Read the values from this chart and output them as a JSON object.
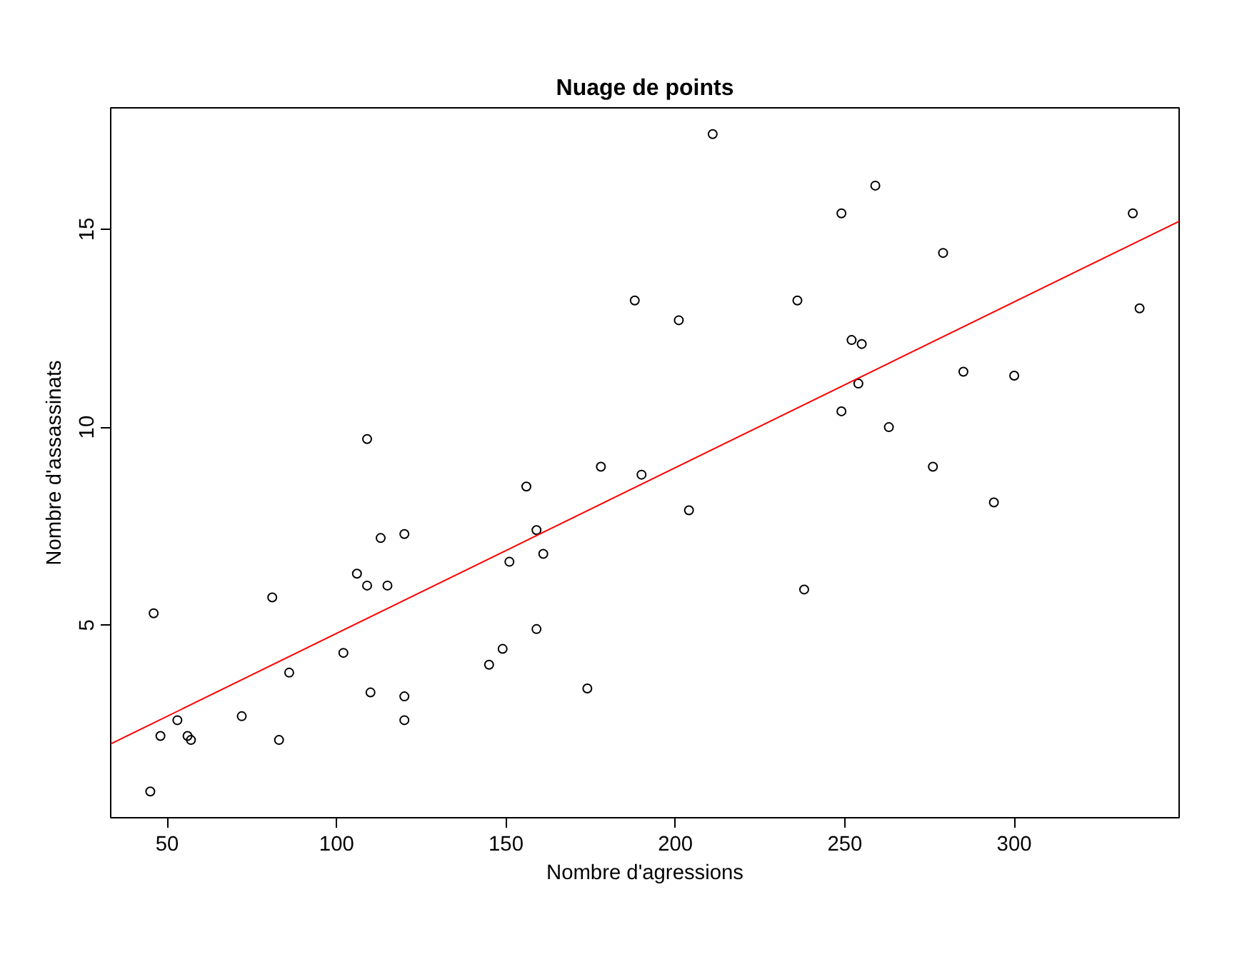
{
  "chart_data": {
    "type": "scatter",
    "title": "Nuage de points",
    "xlabel": "Nombre d'agressions",
    "ylabel": "Nombre d'assassinats",
    "xlim": [
      33.32,
      348.68
    ],
    "ylim": [
      0.136,
      18.064
    ],
    "xticks": [
      50,
      100,
      150,
      200,
      250,
      300
    ],
    "yticks": [
      5,
      10,
      15
    ],
    "grid": false,
    "series": [
      {
        "marker": "circle",
        "color": "#000000",
        "x": [
          236,
          263,
          294,
          190,
          276,
          204,
          110,
          238,
          335,
          211,
          46,
          120,
          249,
          113,
          56,
          115,
          109,
          249,
          83,
          300,
          149,
          255,
          72,
          259,
          178,
          109,
          102,
          252,
          57,
          159,
          285,
          254,
          337,
          45,
          120,
          151,
          159,
          106,
          174,
          279,
          86,
          188,
          201,
          120,
          48,
          156,
          145,
          81,
          53,
          161
        ],
        "values": [
          13.2,
          10.0,
          8.1,
          8.8,
          9.0,
          7.9,
          3.3,
          5.9,
          15.4,
          17.4,
          5.3,
          2.6,
          10.4,
          7.2,
          2.2,
          6.0,
          9.7,
          15.4,
          2.1,
          11.3,
          4.4,
          12.1,
          2.7,
          16.1,
          9.0,
          6.0,
          4.3,
          12.2,
          2.1,
          7.4,
          11.4,
          11.1,
          13.0,
          0.8,
          7.3,
          6.6,
          4.9,
          6.3,
          3.4,
          14.4,
          3.8,
          13.2,
          12.7,
          3.2,
          2.2,
          8.5,
          4.0,
          5.7,
          2.6,
          6.8
        ]
      },
      {
        "type": "line",
        "color": "#ff0000",
        "x": [
          33.32,
          348.68
        ],
        "values": [
          2.0,
          15.2
        ]
      }
    ]
  }
}
